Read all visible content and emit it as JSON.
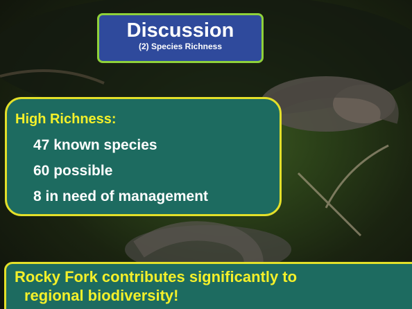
{
  "title": {
    "heading": "Discussion",
    "subheading": "(2) Species Richness"
  },
  "richness": {
    "heading": "High Richness:",
    "items": [
      "47 known species",
      "60 possible",
      "8 in need of management"
    ]
  },
  "conclusion": {
    "lines": [
      "Rocky Fork contributes significantly to",
      "regional biodiversity!"
    ]
  }
}
